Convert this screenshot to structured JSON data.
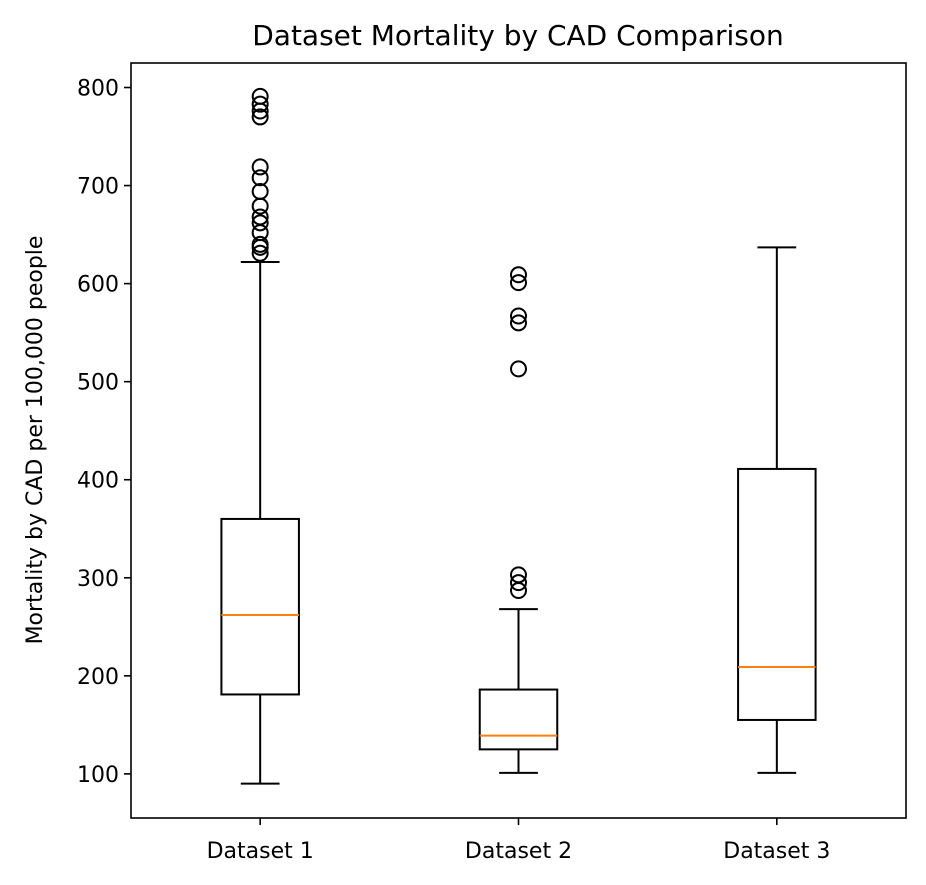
{
  "chart_data": {
    "type": "box",
    "title": "Dataset Mortality by CAD Comparison",
    "xlabel": "",
    "ylabel": "Mortality by CAD per 100,000 people",
    "ylim": [
      55,
      825
    ],
    "yticks": [
      100,
      200,
      300,
      400,
      500,
      600,
      700,
      800
    ],
    "categories": [
      "Dataset 1",
      "Dataset 2",
      "Dataset 3"
    ],
    "boxes": [
      {
        "category": "Dataset 1",
        "whisker_low": 90,
        "q1": 181,
        "median": 262,
        "q3": 360,
        "whisker_high": 622,
        "outliers": [
          631,
          637,
          640,
          652,
          662,
          668,
          679,
          694,
          708,
          719,
          770,
          776,
          783,
          791
        ]
      },
      {
        "category": "Dataset 2",
        "whisker_low": 101,
        "q1": 125,
        "median": 139,
        "q3": 186,
        "whisker_high": 268,
        "outliers": [
          287,
          295,
          303,
          513,
          560,
          567,
          601,
          609
        ]
      },
      {
        "category": "Dataset 3",
        "whisker_low": 101,
        "q1": 155,
        "median": 209,
        "q3": 411,
        "whisker_high": 637,
        "outliers": []
      }
    ],
    "colors": {
      "box": "#000000",
      "median": "#ff7f0e",
      "outlier": "#000000"
    },
    "grid": false,
    "legend": "none"
  }
}
